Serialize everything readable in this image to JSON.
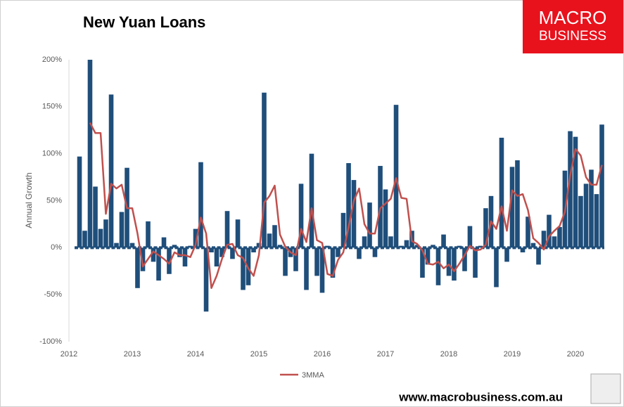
{
  "chart_data": {
    "type": "bar",
    "title": "New Yuan Loans",
    "y_label": "Annual Growth",
    "brand": [
      "MACRO",
      "BUSINESS"
    ],
    "footer": "www.macrobusiness.com.au",
    "x": [
      2012.167,
      2012.25,
      2012.333,
      2012.417,
      2012.5,
      2012.583,
      2012.667,
      2012.75,
      2012.833,
      2012.917,
      2013,
      2013.083,
      2013.167,
      2013.25,
      2013.333,
      2013.417,
      2013.5,
      2013.583,
      2013.667,
      2013.75,
      2013.833,
      2013.917,
      2014,
      2014.083,
      2014.167,
      2014.25,
      2014.333,
      2014.417,
      2014.5,
      2014.583,
      2014.667,
      2014.75,
      2014.833,
      2014.917,
      2015,
      2015.083,
      2015.167,
      2015.25,
      2015.333,
      2015.417,
      2015.5,
      2015.583,
      2015.667,
      2015.75,
      2015.833,
      2015.917,
      2016,
      2016.083,
      2016.167,
      2016.25,
      2016.333,
      2016.417,
      2016.5,
      2016.583,
      2016.667,
      2016.75,
      2016.833,
      2016.917,
      2017,
      2017.083,
      2017.167,
      2017.25,
      2017.333,
      2017.417,
      2017.5,
      2017.583,
      2017.667,
      2017.75,
      2017.833,
      2017.917,
      2018,
      2018.083,
      2018.167,
      2018.25,
      2018.333,
      2018.417,
      2018.5,
      2018.583,
      2018.667,
      2018.75,
      2018.833,
      2018.917,
      2019,
      2019.083,
      2019.167,
      2019.25,
      2019.333,
      2019.417,
      2019.5,
      2019.583,
      2019.667,
      2019.75,
      2019.833,
      2019.917,
      2020,
      2020.083,
      2020.167,
      2020.25,
      2020.333,
      2020.417
    ],
    "series": [
      {
        "type": "bar",
        "color": "#1f4e7a",
        "values": [
          97,
          18,
          200,
          65,
          20,
          30,
          163,
          5,
          38,
          85,
          5,
          -43,
          -25,
          28,
          -15,
          -35,
          11,
          -28,
          3,
          -10,
          -20,
          2,
          20,
          91,
          -68,
          -5,
          -20,
          -10,
          39,
          -12,
          30,
          -45,
          -40,
          -5,
          5,
          165,
          15,
          24,
          3,
          -30,
          -10,
          -25,
          68,
          -45,
          100,
          -30,
          -48,
          2,
          -32,
          -10,
          37,
          90,
          72,
          -12,
          12,
          48,
          -10,
          87,
          62,
          12,
          152,
          2,
          8,
          18,
          3,
          -32,
          -18,
          3,
          -40,
          14,
          -30,
          -35,
          2,
          -25,
          23,
          -32,
          2,
          42,
          55,
          -42,
          117,
          -15,
          86,
          93,
          -5,
          33,
          5,
          -18,
          18,
          35,
          12,
          22,
          82,
          124,
          118,
          55,
          68,
          83,
          57,
          131
        ]
      },
      {
        "type": "line",
        "name": "3MMA",
        "color": "#c0504d",
        "values": [
          null,
          null,
          133,
          122,
          122,
          36,
          68,
          63,
          67,
          42,
          42,
          15,
          -20,
          -12,
          -4,
          -8,
          -12,
          -17,
          -5,
          -8,
          -8,
          -10,
          3,
          32,
          15,
          -43,
          -30,
          -12,
          3,
          4,
          -8,
          -11,
          -22,
          -30,
          -8,
          48,
          55,
          66,
          14,
          1,
          -5,
          -8,
          20,
          6,
          42,
          8,
          5,
          -28,
          -30,
          -13,
          -5,
          22,
          50,
          63,
          25,
          15,
          15,
          42,
          47,
          52,
          74,
          53,
          52,
          7,
          4,
          -3,
          -17,
          -18,
          -15,
          -22,
          -18,
          -25,
          -17,
          -8,
          2,
          -3,
          -2,
          3,
          28,
          20,
          44,
          18,
          61,
          55,
          57,
          40,
          10,
          5,
          -2,
          12,
          18,
          23,
          38,
          77,
          105,
          98,
          75,
          67,
          67,
          88
        ]
      }
    ],
    "xlim": [
      2012,
      2020.5
    ],
    "xticks": [
      2012,
      2013,
      2014,
      2015,
      2016,
      2017,
      2018,
      2019,
      2020
    ],
    "ylim": [
      -100,
      200
    ],
    "yticks": [
      {
        "value": -100,
        "label": "-100%"
      },
      {
        "value": -50,
        "label": "-50%"
      },
      {
        "value": 0,
        "label": "0%"
      },
      {
        "value": 50,
        "label": "50%"
      },
      {
        "value": 100,
        "label": "100%"
      },
      {
        "value": 150,
        "label": "150%"
      },
      {
        "value": 200,
        "label": "200%"
      }
    ],
    "grid": false,
    "legend": "bottom"
  }
}
